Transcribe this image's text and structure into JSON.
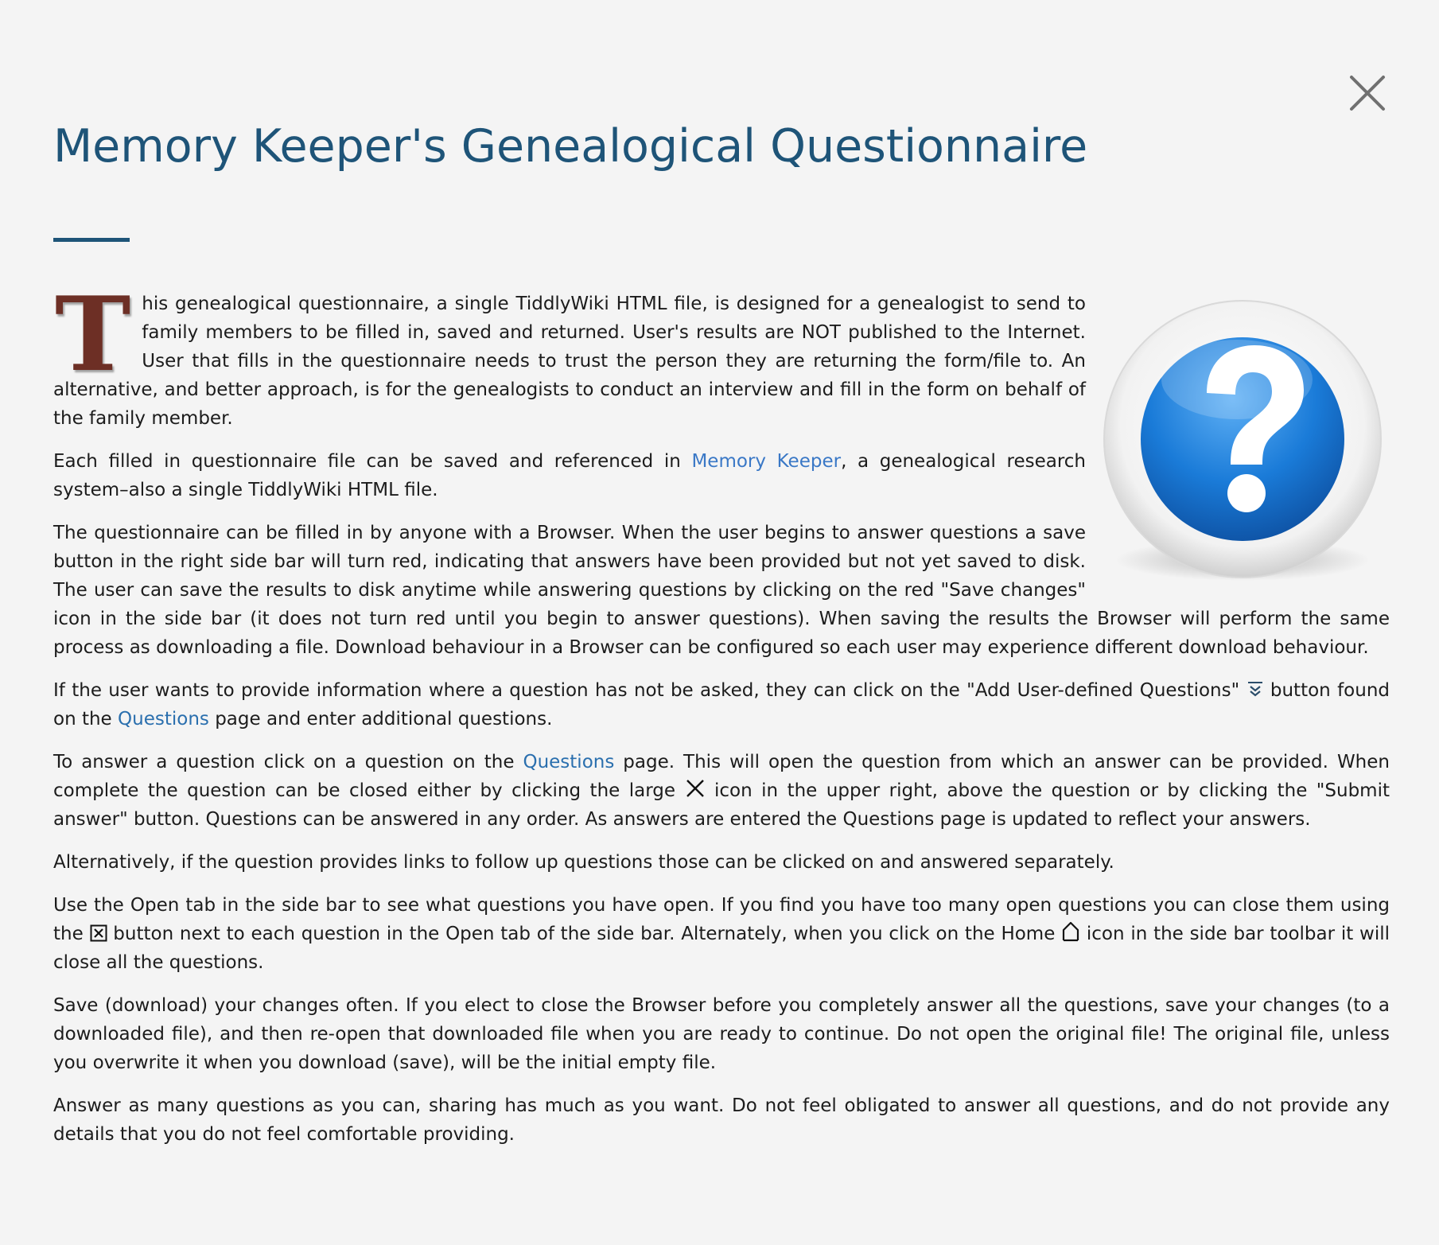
{
  "title": "Memory Keeper's Genealogical Questionnaire",
  "icons": {
    "close": "close-icon",
    "question_image": "question-mark-icon",
    "add_user_questions": "double-chevron-down-icon",
    "large_x": "large-x-icon",
    "close_box": "close-box-icon",
    "home": "home-icon"
  },
  "colors": {
    "title": "#1e5478",
    "dropcap": "#6d2f25",
    "link": "#2a6fae",
    "background": "#f4f4f4"
  },
  "p1": {
    "dropcap": "T",
    "text": "his genealogical questionnaire, a single TiddlyWiki HTML file, is designed for a genealogist to send to family members to be filled in, saved and returned. User's results are NOT published to the Internet. User that fills in the questionnaire needs to trust the person they are returning the form/file to. An alternative, and better approach, is for the genealogists to conduct an interview and fill in the form on behalf of the family member."
  },
  "p2": {
    "before": "Each filled in questionnaire file can be saved and referenced in ",
    "link": "Memory Keeper",
    "after": ", a genealogical research system–also a single TiddlyWiki HTML file."
  },
  "p3": {
    "text": "The questionnaire can be filled in by anyone with a Browser. When the user begins to answer questions a save button in the right side bar will turn red, indicating that answers have been provided but not yet saved to disk. The user can save the results to disk anytime while answering questions by clicking on the red \"Save changes\" icon in the side bar (it does not turn red until you begin to answer questions). When saving the results the Browser will perform the same process as downloading a file. Download behaviour in a Browser can be configured so each user may experience different download behaviour."
  },
  "p4": {
    "before": "If the user wants to provide information where a question has not be asked, they can click on the \"Add User-defined Questions\" ",
    "middle": " button found on the ",
    "link": "Questions",
    "after": " page and enter additional questions."
  },
  "p5": {
    "before": "To answer a question click on a question on the ",
    "link": "Questions",
    "middle": " page. This will open the question from which an answer can be provided. When complete the question can be closed either by clicking the large ",
    "after": " icon in the upper right, above the question or by clicking the \"Submit answer\" button. Questions can be answered in any order. As answers are entered the Questions page is updated to reflect your answers."
  },
  "p6": {
    "text": "Alternatively, if the question provides links to follow up questions those can be clicked on and answered separately."
  },
  "p7": {
    "before": "Use the Open tab in the side bar to see what questions you have open. If you find you have too many open questions you can close them using the ",
    "middle": " button next to each question in the Open tab of the side bar. Alternately, when you click on the Home ",
    "after": " icon in the side bar toolbar it will close all the questions."
  },
  "p8": {
    "text": "Save (download) your changes often. If you elect to close the Browser before you completely answer all the questions, save your changes (to a downloaded file), and then re-open that downloaded file when you are ready to continue. Do not open the original file! The original file, unless you overwrite it when you download (save), will be the initial empty file."
  },
  "p9": {
    "text": "Answer as many questions as you can, sharing has much as you want. Do not feel obligated to answer all questions, and do not provide any details that you do not feel comfortable providing."
  }
}
